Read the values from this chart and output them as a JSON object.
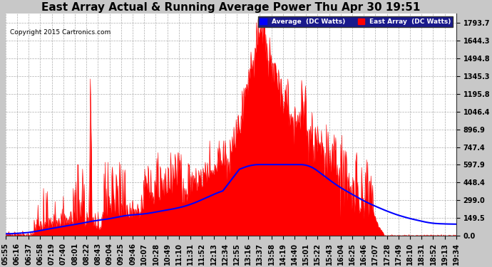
{
  "title": "East Array Actual & Running Average Power Thu Apr 30 19:51",
  "copyright": "Copyright 2015 Cartronics.com",
  "legend_labels": [
    "Average  (DC Watts)",
    "East Array  (DC Watts)"
  ],
  "legend_colors": [
    "#0000ff",
    "#ff0000"
  ],
  "background_color": "#c8c8c8",
  "plot_bg_color": "#ffffff",
  "grid_color": "#999999",
  "yticks": [
    0.0,
    149.5,
    299.0,
    448.4,
    597.9,
    747.4,
    896.9,
    1046.4,
    1195.8,
    1345.3,
    1494.8,
    1644.3,
    1793.7
  ],
  "ymax": 1870.0,
  "fill_color": "#ff0000",
  "avg_color": "#0000ff",
  "title_fontsize": 11,
  "tick_fontsize": 7,
  "label_times": [
    "05:55",
    "06:16",
    "06:37",
    "06:58",
    "07:19",
    "07:40",
    "08:01",
    "08:22",
    "08:43",
    "09:04",
    "09:25",
    "09:46",
    "10:07",
    "10:28",
    "10:49",
    "11:10",
    "11:31",
    "11:52",
    "12:13",
    "12:34",
    "12:55",
    "13:16",
    "13:37",
    "13:58",
    "14:19",
    "14:40",
    "15:01",
    "15:22",
    "15:43",
    "16:04",
    "16:25",
    "16:46",
    "17:07",
    "17:28",
    "17:49",
    "18:10",
    "18:31",
    "18:52",
    "19:13",
    "19:34"
  ]
}
